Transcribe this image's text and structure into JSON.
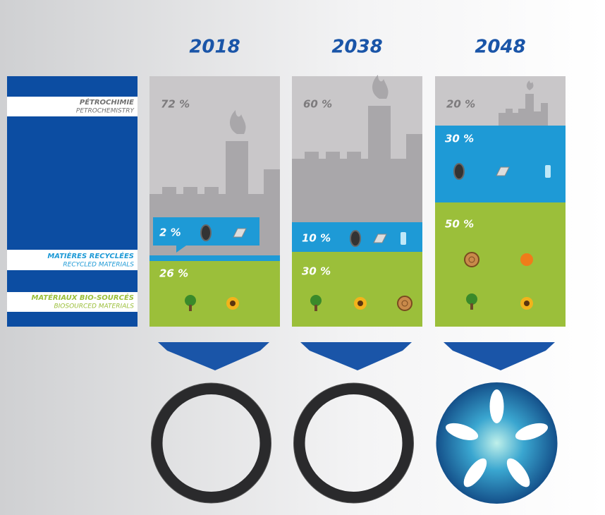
{
  "legend": [
    {
      "title": "PÉTROCHIMIE",
      "subtitle": "PETROCHEMISTRY"
    },
    {
      "title": "MATIÈRES RECYCLÉES",
      "subtitle": "RECYCLED MATERIALS"
    },
    {
      "title": "MATÉRIAUX BIO-SOURCÉS",
      "subtitle": "BIOSOURCED MATERIALS"
    }
  ],
  "columns": [
    {
      "year": "2018",
      "petrochemistry": "72 %",
      "recycled": "2 %",
      "biosourced": "26 %"
    },
    {
      "year": "2038",
      "petrochemistry": "60 %",
      "recycled": "10 %",
      "biosourced": "30 %"
    },
    {
      "year": "2048",
      "petrochemistry": "20 %",
      "recycled": "30 %",
      "biosourced": "50 %"
    }
  ]
}
